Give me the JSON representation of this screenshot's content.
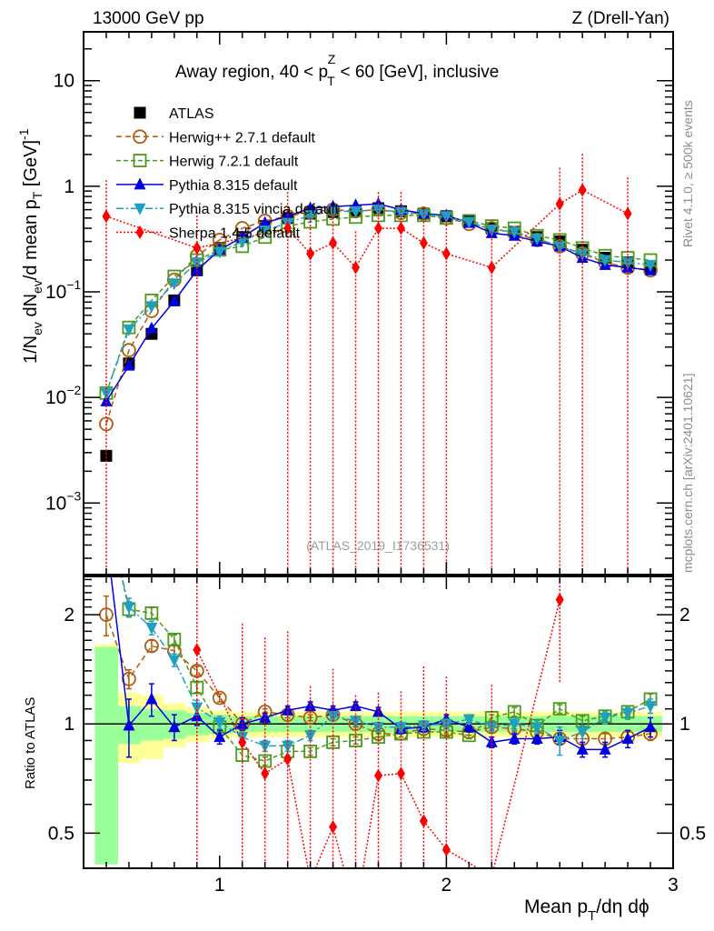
{
  "header": {
    "left": "13000 GeV pp",
    "right": "Z (Drell-Yan)"
  },
  "side_labels": {
    "rivet": "Rivet 4.1.0, ≥ 500k events",
    "mcplots": "mcplots.cern.ch [arXiv:2401.10621]"
  },
  "chart_data": {
    "type": "line",
    "title": "Away region, 40 < p_T^Z < 60 [GeV], inclusive",
    "title_parts": {
      "pre": "Away region, 40 < p",
      "sup": "Z",
      "sub": "T",
      "post": " < 60 [GeV], inclusive"
    },
    "analysis_id": "(ATLAS_2019_I1736531)",
    "xlabel": "Mean p_T/dη dφ",
    "xlabel_parts": {
      "pre": "Mean p",
      "sub": "T",
      "post": "/dη dϕ"
    },
    "ylabel": "1/N_ev dN_ev/d mean p_T [GeV]^-1",
    "ratio_ylabel": "Ratio to ATLAS",
    "xlim": [
      0.4,
      3.0
    ],
    "ylim": [
      0.00021,
      29
    ],
    "yscale": "log",
    "ratio_ylim": [
      0.4,
      2.55
    ],
    "xticks": [
      1,
      2,
      3
    ],
    "xtick_labels": [
      "1",
      "2",
      "3"
    ],
    "yticks": [
      10,
      1,
      0.1,
      0.01,
      0.001
    ],
    "ytick_labels": [
      {
        "base": "10",
        "exp": ""
      },
      {
        "base": "1",
        "exp": ""
      },
      {
        "base": "10",
        "exp": "−1"
      },
      {
        "base": "10",
        "exp": "−2"
      },
      {
        "base": "10",
        "exp": "−3"
      }
    ],
    "ratio_yticks": [
      2,
      1,
      0.5
    ],
    "ratio_ytick_labels": [
      "2",
      "1",
      "0.5"
    ],
    "legend_position": "top-left",
    "x": [
      0.5,
      0.6,
      0.7,
      0.8,
      0.9,
      1.0,
      1.1,
      1.2,
      1.3,
      1.4,
      1.5,
      1.6,
      1.7,
      1.8,
      1.9,
      2.0,
      2.1,
      2.2,
      2.3,
      2.4,
      2.5,
      2.6,
      2.7,
      2.8,
      2.9
    ],
    "data": {
      "name": "ATLAS",
      "values": [
        0.0028,
        0.021,
        0.04,
        0.083,
        0.16,
        0.26,
        0.33,
        0.42,
        0.5,
        0.55,
        0.57,
        0.58,
        0.62,
        0.58,
        0.55,
        0.52,
        0.47,
        0.4,
        0.37,
        0.33,
        0.3,
        0.25,
        0.21,
        0.19,
        0.17
      ],
      "band_inner": [
        0.63,
        0.12,
        0.1,
        0.09,
        0.07,
        0.06,
        0.05,
        0.05,
        0.05,
        0.05,
        0.05,
        0.05,
        0.05,
        0.05,
        0.05,
        0.05,
        0.05,
        0.05,
        0.05,
        0.05,
        0.05,
        0.05,
        0.05,
        0.05,
        0.05
      ],
      "band_outer": [
        0.66,
        0.22,
        0.2,
        0.14,
        0.11,
        0.09,
        0.08,
        0.08,
        0.08,
        0.08,
        0.08,
        0.08,
        0.08,
        0.08,
        0.08,
        0.08,
        0.08,
        0.08,
        0.08,
        0.08,
        0.08,
        0.08,
        0.08,
        0.08,
        0.08
      ]
    },
    "series": [
      {
        "name": "Herwig++ 2.7.1 default",
        "color": "#b05c10",
        "marker": "open-circle",
        "dash": "6,4",
        "values": [
          0.0056,
          0.028,
          0.066,
          0.13,
          0.22,
          0.31,
          0.4,
          0.47,
          0.52,
          0.57,
          0.6,
          0.58,
          0.6,
          0.56,
          0.55,
          0.5,
          0.44,
          0.4,
          0.36,
          0.31,
          0.27,
          0.23,
          0.19,
          0.17,
          0.16
        ],
        "ratio": [
          2.0,
          1.33,
          1.64,
          1.59,
          1.4,
          1.18,
          1.0,
          1.08,
          1.06,
          1.04,
          1.06,
          1.0,
          0.94,
          0.94,
          0.97,
          0.96,
          0.95,
          0.98,
          0.97,
          0.95,
          0.91,
          0.91,
          0.91,
          0.92,
          0.94
        ],
        "ratio_err": [
          0.25,
          0.08,
          0.06,
          0.05,
          0.04,
          0.03,
          0.03,
          0.02,
          0.02,
          0.02,
          0.02,
          0.02,
          0.02,
          0.02,
          0.02,
          0.02,
          0.02,
          0.02,
          0.02,
          0.02,
          0.03,
          0.03,
          0.03,
          0.03,
          0.04
        ]
      },
      {
        "name": "Herwig 7.2.1 default",
        "color": "#4c9a1c",
        "marker": "open-square",
        "dash": "5,3",
        "values": [
          0.011,
          0.046,
          0.083,
          0.14,
          0.2,
          0.25,
          0.27,
          0.33,
          0.42,
          0.46,
          0.49,
          0.51,
          0.53,
          0.53,
          0.53,
          0.5,
          0.47,
          0.42,
          0.4,
          0.34,
          0.31,
          0.26,
          0.22,
          0.21,
          0.2
        ],
        "ratio": [
          3.9,
          2.07,
          2.02,
          1.71,
          1.26,
          0.98,
          0.82,
          0.79,
          0.84,
          0.84,
          0.89,
          0.9,
          0.92,
          0.94,
          0.95,
          0.95,
          0.93,
          1.04,
          1.08,
          0.99,
          1.1,
          1.02,
          1.05,
          1.08,
          1.17
        ],
        "ratio_err": [
          0.3,
          0.1,
          0.07,
          0.05,
          0.04,
          0.03,
          0.03,
          0.02,
          0.02,
          0.02,
          0.02,
          0.02,
          0.02,
          0.02,
          0.02,
          0.02,
          0.02,
          0.02,
          0.03,
          0.03,
          0.03,
          0.03,
          0.03,
          0.03,
          0.04
        ]
      },
      {
        "name": "Pythia 8.315 default",
        "color": "#0000e0",
        "marker": "filled-triangle-up",
        "dash": "",
        "values": [
          0.0092,
          0.02,
          0.045,
          0.082,
          0.16,
          0.25,
          0.33,
          0.45,
          0.52,
          0.62,
          0.64,
          0.66,
          0.68,
          0.6,
          0.55,
          0.53,
          0.45,
          0.36,
          0.34,
          0.3,
          0.27,
          0.21,
          0.18,
          0.17,
          0.16
        ],
        "ratio": [
          3.3,
          0.99,
          1.17,
          0.98,
          1.05,
          0.92,
          1.0,
          1.04,
          1.09,
          1.12,
          1.09,
          1.12,
          1.08,
          0.97,
          0.98,
          1.03,
          0.98,
          0.89,
          0.91,
          0.91,
          0.92,
          0.85,
          0.85,
          0.91,
          0.98
        ],
        "ratio_err": [
          0.5,
          0.18,
          0.12,
          0.08,
          0.06,
          0.04,
          0.04,
          0.03,
          0.03,
          0.03,
          0.03,
          0.03,
          0.03,
          0.03,
          0.03,
          0.03,
          0.03,
          0.03,
          0.03,
          0.03,
          0.04,
          0.04,
          0.04,
          0.05,
          0.06
        ]
      },
      {
        "name": "Pythia 8.315 vincia default",
        "color": "#1fa0c0",
        "marker": "filled-triangle-down",
        "dash": "8,3,2,3",
        "values": [
          0.011,
          0.044,
          0.073,
          0.12,
          0.19,
          0.24,
          0.3,
          0.38,
          0.45,
          0.53,
          0.58,
          0.58,
          0.6,
          0.57,
          0.54,
          0.52,
          0.46,
          0.39,
          0.37,
          0.32,
          0.27,
          0.23,
          0.2,
          0.19,
          0.18
        ],
        "ratio": [
          3.9,
          2.1,
          1.84,
          1.5,
          1.11,
          1.01,
          0.92,
          0.87,
          0.87,
          0.93,
          1.05,
          1.02,
          0.98,
          0.98,
          0.99,
          1.0,
          1.03,
          0.98,
          1.0,
          0.98,
          0.9,
          0.95,
          1.04,
          1.07,
          1.12
        ],
        "ratio_err": [
          0.3,
          0.12,
          0.08,
          0.06,
          0.05,
          0.04,
          0.03,
          0.03,
          0.03,
          0.03,
          0.03,
          0.03,
          0.03,
          0.03,
          0.03,
          0.03,
          0.03,
          0.03,
          0.04,
          0.04,
          0.08,
          0.04,
          0.04,
          0.04,
          0.05
        ]
      },
      {
        "name": "Sherpa 1.4.5 default",
        "color": "#ff0000",
        "marker": "filled-diamond",
        "dash": "2,2",
        "values": [
          0.52,
          null,
          null,
          null,
          0.26,
          null,
          null,
          null,
          0.4,
          0.23,
          0.29,
          0.17,
          0.4,
          0.4,
          0.29,
          0.23,
          null,
          0.17,
          null,
          null,
          0.68,
          0.92,
          null,
          0.55,
          null
        ],
        "ratio": [
          null,
          null,
          null,
          null,
          1.6,
          null,
          0.89,
          0.73,
          0.8,
          0.37,
          0.52,
          0.3,
          0.72,
          0.73,
          0.54,
          0.45,
          null,
          0.38,
          null,
          null,
          2.2,
          null,
          null,
          null,
          null
        ],
        "ratio_err": [
          null,
          null,
          null,
          null,
          1.5,
          null,
          1.0,
          1.0,
          1.0,
          0.9,
          0.9,
          0.9,
          0.5,
          0.5,
          0.9,
          0.9,
          null,
          0.9,
          null,
          null,
          0.9,
          null,
          null,
          null,
          null
        ]
      }
    ]
  }
}
